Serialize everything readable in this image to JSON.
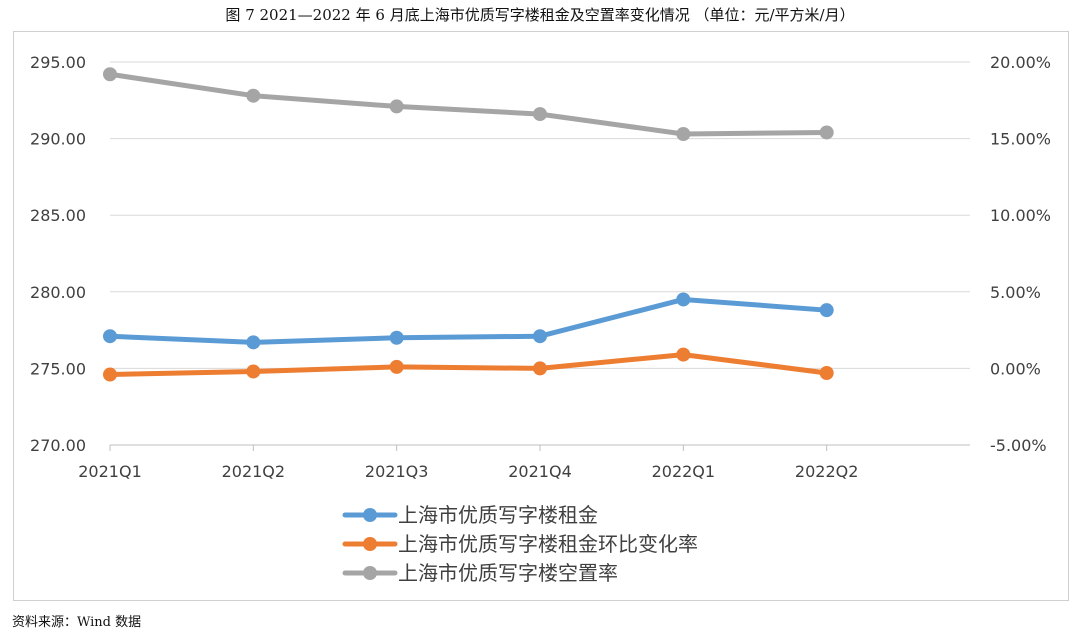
{
  "figure": {
    "title": "图 7 2021—2022 年 6 月底上海市优质写字楼租金及空置率变化情况 （单位：元/平方米/月）",
    "source": "资料来源：Wind 数据"
  },
  "chart_data": {
    "type": "line",
    "title": "图 7 2021—2022 年 6 月底上海市优质写字楼租金及空置率变化情况 （单位：元/平方米/月）",
    "categories": [
      "2021Q1",
      "2021Q2",
      "2021Q3",
      "2021Q4",
      "2022Q1",
      "2022Q2"
    ],
    "y_left": {
      "ylim": [
        270,
        295
      ],
      "ticks": [
        "270.00",
        "275.00",
        "280.00",
        "285.00",
        "290.00",
        "295.00"
      ]
    },
    "y_right": {
      "ylim": [
        -5,
        20
      ],
      "unit": "%",
      "ticks": [
        "-5.00%",
        "0.00%",
        "5.00%",
        "10.00%",
        "15.00%",
        "20.00%"
      ]
    },
    "grid": true,
    "legend_position": "bottom",
    "series": [
      {
        "name": "上海市优质写字楼租金",
        "axis": "left",
        "color": "#5b9bd5",
        "values": [
          277.1,
          276.7,
          277.0,
          277.1,
          279.5,
          278.8
        ]
      },
      {
        "name": "上海市优质写字楼租金环比变化率",
        "axis": "right",
        "color": "#ed7d31",
        "values": [
          -0.4,
          -0.2,
          0.1,
          0.0,
          0.9,
          -0.3
        ]
      },
      {
        "name": "上海市优质写字楼空置率",
        "axis": "right",
        "color": "#a5a5a5",
        "values": [
          19.2,
          17.8,
          17.1,
          16.6,
          15.3,
          15.4
        ]
      }
    ]
  }
}
